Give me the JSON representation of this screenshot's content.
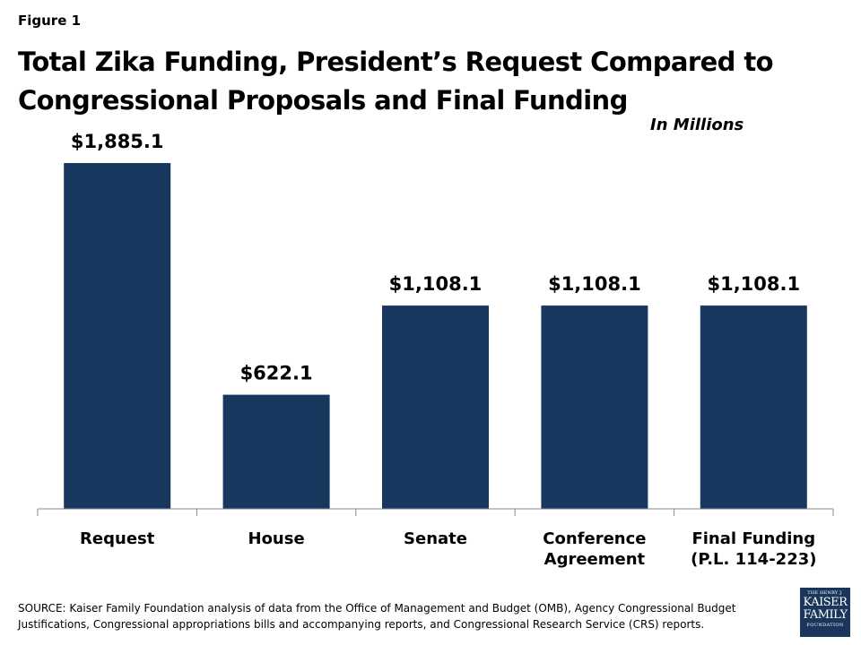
{
  "figure_label": "Figure 1",
  "units_note": "In Millions",
  "source_note": "SOURCE: Kaiser Family Foundation analysis of data from the Office of Management and Budget (OMB), Agency Congressional Budget Justifications, Congressional appropriations bills and accompanying reports, and Congressional Research Service (CRS) reports.",
  "logo": {
    "line1": "THE HENRY J.",
    "line2": "KAISER",
    "line3": "FAMILY",
    "line4": "FOUNDATION"
  },
  "colors": {
    "bar": "#17375e",
    "axis": "#888888"
  },
  "chart_data": {
    "type": "bar",
    "title": "Total Zika Funding, President’s Request Compared to Congressional Proposals and Final Funding",
    "categories": [
      [
        "Request"
      ],
      [
        "House"
      ],
      [
        "Senate"
      ],
      [
        "Conference",
        "Agreement"
      ],
      [
        "Final Funding",
        "(P.L. 114-223)"
      ]
    ],
    "values": [
      1885.1,
      622.1,
      1108.1,
      1108.1,
      1108.1
    ],
    "data_labels": [
      "$1,885.1",
      "$622.1",
      "$1,108.1",
      "$1,108.1",
      "$1,108.1"
    ],
    "ylim": [
      0,
      1885.1
    ],
    "xlabel": "",
    "ylabel": "",
    "grid": false,
    "legend": "none"
  }
}
